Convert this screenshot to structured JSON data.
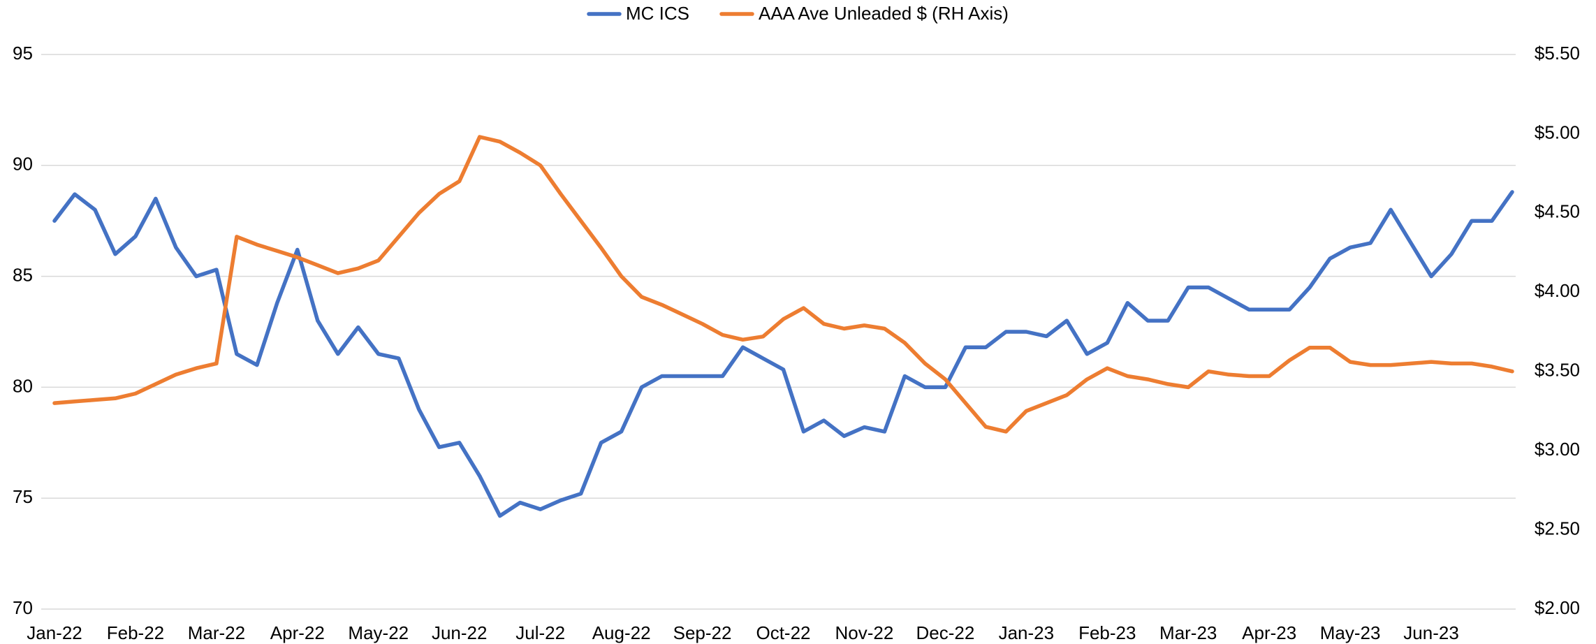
{
  "chart_data": {
    "type": "line",
    "categories": [
      "Jan-22",
      null,
      null,
      null,
      "Feb-22",
      null,
      null,
      null,
      "Mar-22",
      null,
      null,
      null,
      "Apr-22",
      null,
      null,
      null,
      "May-22",
      null,
      null,
      null,
      "Jun-22",
      null,
      null,
      null,
      "Jul-22",
      null,
      null,
      null,
      "Aug-22",
      null,
      null,
      null,
      "Sep-22",
      null,
      null,
      null,
      "Oct-22",
      null,
      null,
      null,
      "Nov-22",
      null,
      null,
      null,
      "Dec-22",
      null,
      null,
      null,
      "Jan-23",
      null,
      null,
      null,
      "Feb-23",
      null,
      null,
      null,
      "Mar-23",
      null,
      null,
      null,
      "Apr-23",
      null,
      null,
      null,
      "May-23",
      null,
      null,
      null,
      "Jun-23",
      null,
      null,
      null,
      null
    ],
    "series": [
      {
        "name": "MC ICS",
        "color": "#4472c4",
        "axis": "y",
        "values": [
          87.5,
          88.7,
          88.0,
          86.0,
          86.8,
          88.5,
          86.3,
          85.0,
          85.3,
          81.5,
          81.0,
          83.8,
          86.2,
          83.0,
          81.5,
          82.7,
          81.5,
          81.3,
          79.0,
          77.3,
          77.5,
          76.0,
          74.2,
          74.8,
          74.5,
          74.9,
          75.2,
          77.5,
          78.0,
          80.0,
          80.5,
          80.5,
          80.5,
          80.5,
          81.8,
          81.3,
          80.8,
          78.0,
          78.5,
          77.8,
          78.2,
          78.0,
          80.5,
          80.0,
          80.0,
          81.8,
          81.8,
          82.5,
          82.5,
          82.3,
          83.0,
          81.5,
          82.0,
          83.8,
          83.0,
          83.0,
          84.5,
          84.5,
          84.0,
          83.5,
          83.5,
          83.5,
          84.5,
          85.8,
          86.3,
          86.5,
          88.0,
          86.5,
          85.0,
          86.0,
          87.5,
          87.5,
          88.8
        ]
      },
      {
        "name": "AAA Ave Unleaded $ (RH Axis)",
        "color": "#ed7d31",
        "axis": "y2",
        "values": [
          3.3,
          3.31,
          3.32,
          3.33,
          3.36,
          3.42,
          3.48,
          3.52,
          3.55,
          4.35,
          4.3,
          4.26,
          4.22,
          4.17,
          4.12,
          4.15,
          4.2,
          4.35,
          4.5,
          4.62,
          4.7,
          4.98,
          4.95,
          4.88,
          4.8,
          4.62,
          4.45,
          4.28,
          4.1,
          3.97,
          3.92,
          3.86,
          3.8,
          3.73,
          3.7,
          3.72,
          3.83,
          3.9,
          3.8,
          3.77,
          3.79,
          3.77,
          3.68,
          3.55,
          3.45,
          3.3,
          3.15,
          3.12,
          3.25,
          3.3,
          3.35,
          3.45,
          3.52,
          3.47,
          3.45,
          3.42,
          3.4,
          3.5,
          3.48,
          3.47,
          3.47,
          3.57,
          3.65,
          3.65,
          3.56,
          3.54,
          3.54,
          3.55,
          3.56,
          3.55,
          3.55,
          3.53,
          3.5
        ]
      }
    ],
    "ylim": [
      70,
      95
    ],
    "yticks": [
      70,
      75,
      80,
      85,
      90,
      95
    ],
    "y2lim": [
      2.0,
      5.5
    ],
    "y2ticks": [
      {
        "value": 2.0,
        "label": "$2.00"
      },
      {
        "value": 2.5,
        "label": "$2.50"
      },
      {
        "value": 3.0,
        "label": "$3.00"
      },
      {
        "value": 3.5,
        "label": "$3.50"
      },
      {
        "value": 4.0,
        "label": "$4.00"
      },
      {
        "value": 4.5,
        "label": "$4.50"
      },
      {
        "value": 5.0,
        "label": "$5.00"
      },
      {
        "value": 5.5,
        "label": "$5.50"
      }
    ],
    "grid": true,
    "legend": "top"
  }
}
